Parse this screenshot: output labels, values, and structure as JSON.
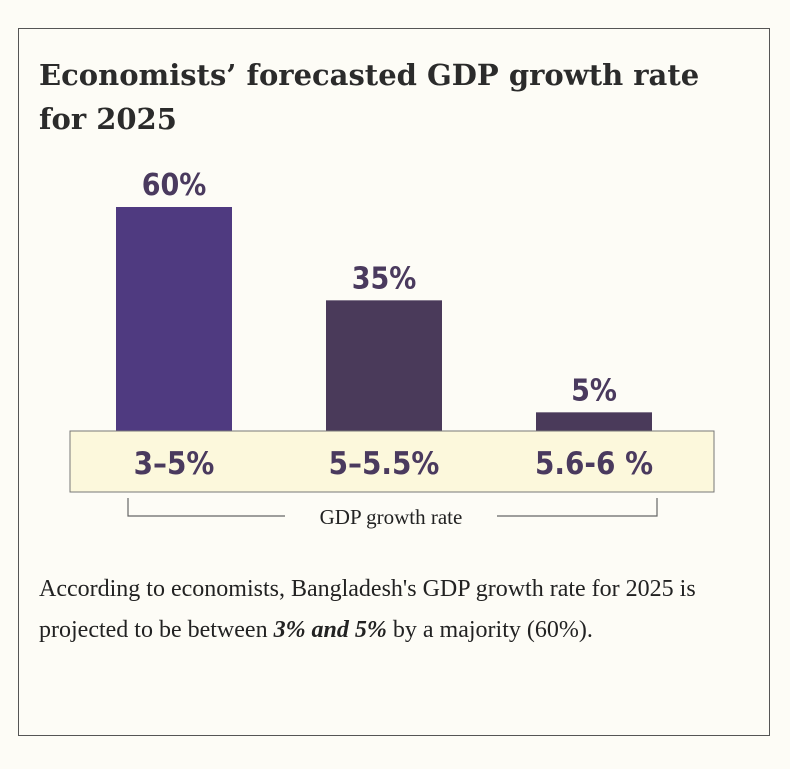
{
  "title": "Economists’ forecasted GDP growth rate for 2025",
  "chart_data": {
    "type": "bar",
    "title": "Economists’ forecasted GDP growth rate for 2025",
    "categories": [
      "3–5%",
      "5–5.5%",
      "5.6-6 %"
    ],
    "values": [
      60,
      35,
      5
    ],
    "value_labels": [
      "60%",
      "35%",
      "5%"
    ],
    "xlabel": "GDP growth rate",
    "ylabel": "",
    "ylim": [
      0,
      60
    ],
    "colors": [
      "#4f3a80",
      "#4a3a5a",
      "#4a3a5a"
    ]
  },
  "caption": {
    "before": "According to economists, Bangladesh's GDP growth rate for 2025 is projected to be between ",
    "highlight": "3% and 5%",
    "after": " by a majority (60%)."
  },
  "colors": {
    "band": "#fcf8dc",
    "label": "#4a3a5e"
  }
}
